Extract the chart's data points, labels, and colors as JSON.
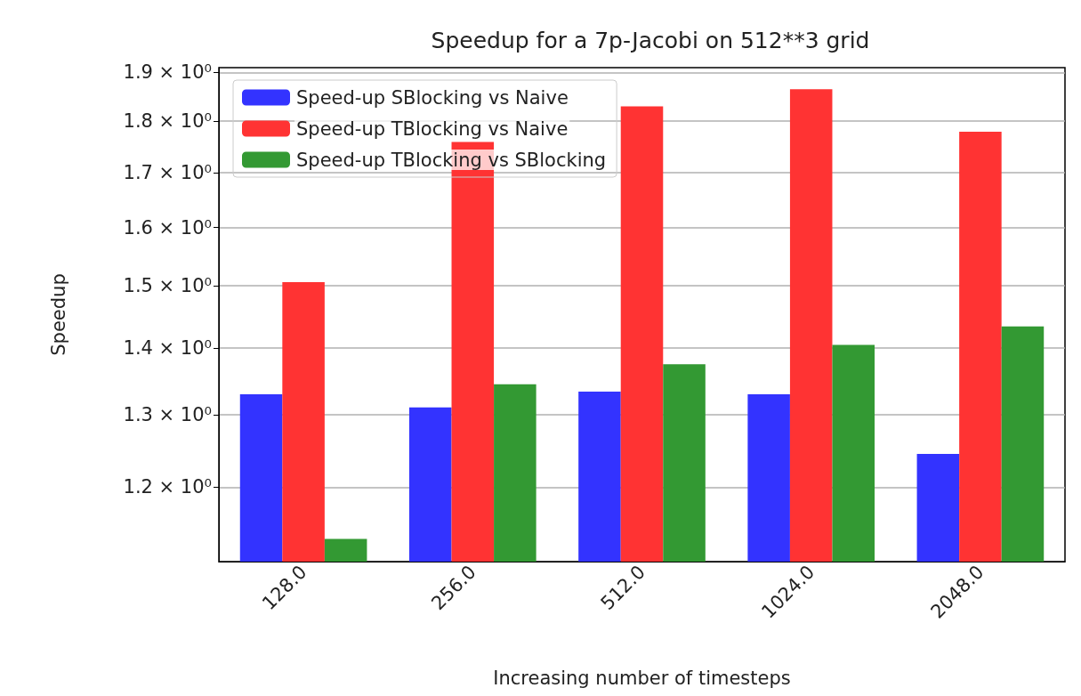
{
  "chart_data": {
    "type": "bar",
    "title": "Speedup for a 7p-Jacobi on 512**3 grid",
    "xlabel": "Increasing number of timesteps",
    "ylabel": "Speedup",
    "categories": [
      "128.0",
      "256.0",
      "512.0",
      "1024.0",
      "2048.0"
    ],
    "series": [
      {
        "name": "Speed-up SBlocking vs Naive",
        "color": "#3333ff",
        "values": [
          1.33,
          1.311,
          1.334,
          1.33,
          1.245
        ]
      },
      {
        "name": "Speed-up TBlocking vs Naive",
        "color": "#ff3333",
        "values": [
          1.506,
          1.759,
          1.83,
          1.865,
          1.779
        ]
      },
      {
        "name": "Speed-up TBlocking vs SBlocking",
        "color": "#339933",
        "values": [
          1.133,
          1.345,
          1.375,
          1.405,
          1.434
        ]
      }
    ],
    "log": "y",
    "ylim": [
      1.105,
      1.91
    ],
    "yticks": [
      {
        "value": 1.2,
        "label": "1.2 × 10⁰"
      },
      {
        "value": 1.3,
        "label": "1.3 × 10⁰"
      },
      {
        "value": 1.4,
        "label": "1.4 × 10⁰"
      },
      {
        "value": 1.5,
        "label": "1.5 × 10⁰"
      },
      {
        "value": 1.6,
        "label": "1.6 × 10⁰"
      },
      {
        "value": 1.7,
        "label": "1.7 × 10⁰"
      },
      {
        "value": 1.8,
        "label": "1.8 × 10⁰"
      },
      {
        "value": 1.9,
        "label": "1.9 × 10⁰"
      }
    ],
    "grid": "y",
    "legend": "top left"
  }
}
